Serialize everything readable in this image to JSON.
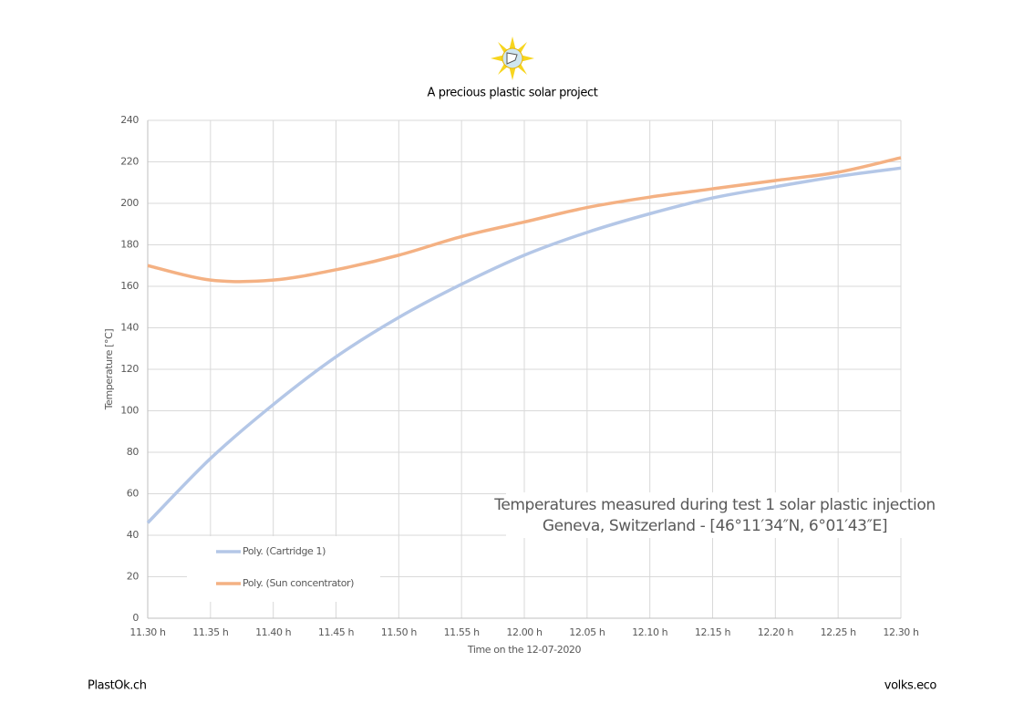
{
  "header": {
    "title": "A precious plastic solar project"
  },
  "chart_data": {
    "type": "line",
    "x_label": "Time on the 12-07-2020",
    "y_label": "Temperature [°C]",
    "annotation": [
      "Temperatures measured during test 1 solar plastic injection",
      "Geneva, Switzerland - [46°11′34″N, 6°01′43″E]"
    ],
    "categories": [
      "11.30 h",
      "11.35 h",
      "11.40 h",
      "11.45 h",
      "11.50 h",
      "11.55 h",
      "12.00 h",
      "12.05 h",
      "12.10 h",
      "12.15 h",
      "12.20 h",
      "12.25 h",
      "12.30 h"
    ],
    "series": [
      {
        "name": "Poly. (Cartridge 1)",
        "color": "#b4c7e7",
        "values": [
          46,
          77,
          103,
          126,
          145,
          161,
          175,
          186,
          195,
          202.6,
          208,
          213,
          217
        ]
      },
      {
        "name": "Poly. (Sun concentrator)",
        "color": "#f4b183",
        "values": [
          170,
          163,
          163,
          168,
          175,
          184,
          191,
          198,
          203,
          207,
          211,
          215,
          222
        ]
      }
    ],
    "ylim": [
      0,
      240
    ],
    "yticks": [
      0,
      20,
      40,
      60,
      80,
      100,
      120,
      140,
      160,
      180,
      200,
      220,
      240
    ],
    "grid": true,
    "legend": "bottom-left"
  },
  "footer": {
    "left": "PlastOk.ch",
    "right": "volks.eco"
  }
}
